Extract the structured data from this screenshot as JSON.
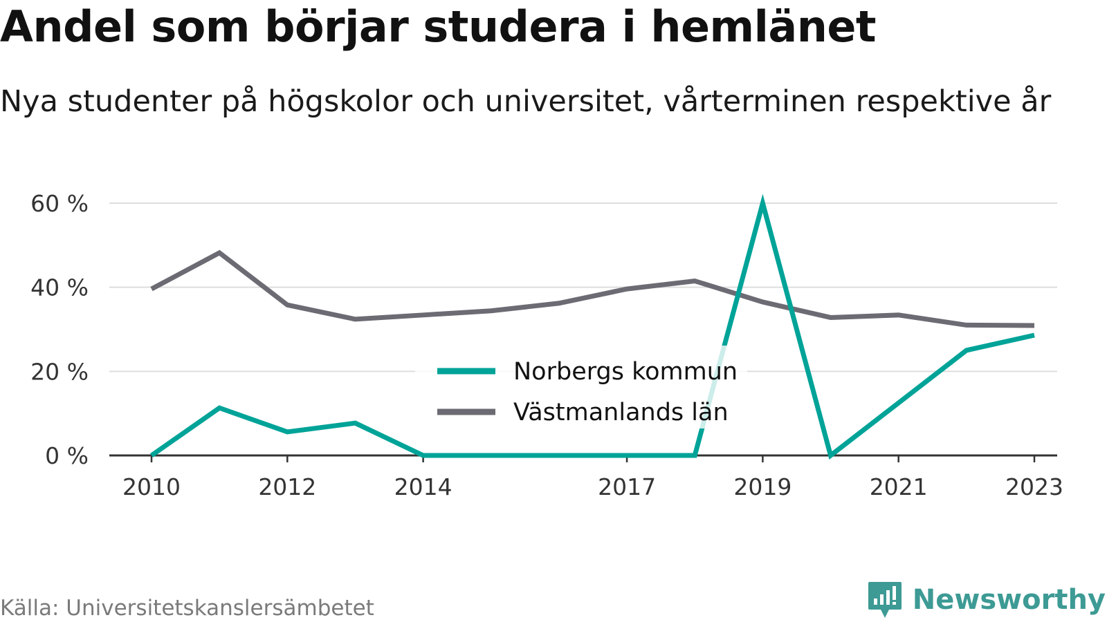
{
  "title": "Andel som börjar studera i hemlänet",
  "subtitle": "Nya studenter på högskolor och universitet, vårterminen respektive år",
  "source": "Källa: Universitetskanslersämbetet",
  "brand": "Newsworthy",
  "chart_data": {
    "type": "line",
    "x": [
      2010,
      2011,
      2012,
      2013,
      2014,
      2015,
      2016,
      2017,
      2018,
      2019,
      2020,
      2021,
      2022,
      2023
    ],
    "x_tick_labels": [
      "2010",
      "2012",
      "2014",
      "2017",
      "2019",
      "2021",
      "2023"
    ],
    "x_tick_values": [
      2010,
      2012,
      2014,
      2017,
      2019,
      2021,
      2023
    ],
    "y_tick_labels": [
      "0 %",
      "20 %",
      "40 %",
      "60 %"
    ],
    "y_tick_values": [
      0,
      20,
      40,
      60
    ],
    "ylim": [
      0,
      60
    ],
    "grid": true,
    "legend_position": "center",
    "series": [
      {
        "name": "Norbergs kommun",
        "color": "#00a398",
        "values": [
          0,
          11.3,
          5.6,
          7.7,
          0,
          0,
          0,
          0,
          0,
          60,
          0,
          12.5,
          25,
          28.6
        ]
      },
      {
        "name": "Västmanlands län",
        "color": "#6c6b73",
        "values": [
          39.6,
          48.2,
          35.8,
          32.4,
          33.4,
          34.4,
          36.2,
          39.6,
          41.5,
          36.5,
          32.8,
          33.4,
          31,
          30.9
        ]
      }
    ]
  }
}
